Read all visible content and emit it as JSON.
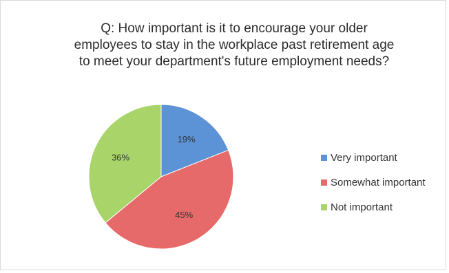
{
  "chart_data": {
    "type": "pie",
    "title": "Q: How important is it to encourage your older\nemployees to stay in the workplace past retirement age\nto meet your department's future employment needs?",
    "categories": [
      "Very important",
      "Somewhat important",
      "Not important"
    ],
    "values": [
      19,
      45,
      36
    ],
    "value_labels": [
      "19%",
      "45%",
      "36%"
    ],
    "colors": [
      "#5b93d6",
      "#e76a6a",
      "#a8d46a"
    ],
    "legend_position": "right"
  }
}
